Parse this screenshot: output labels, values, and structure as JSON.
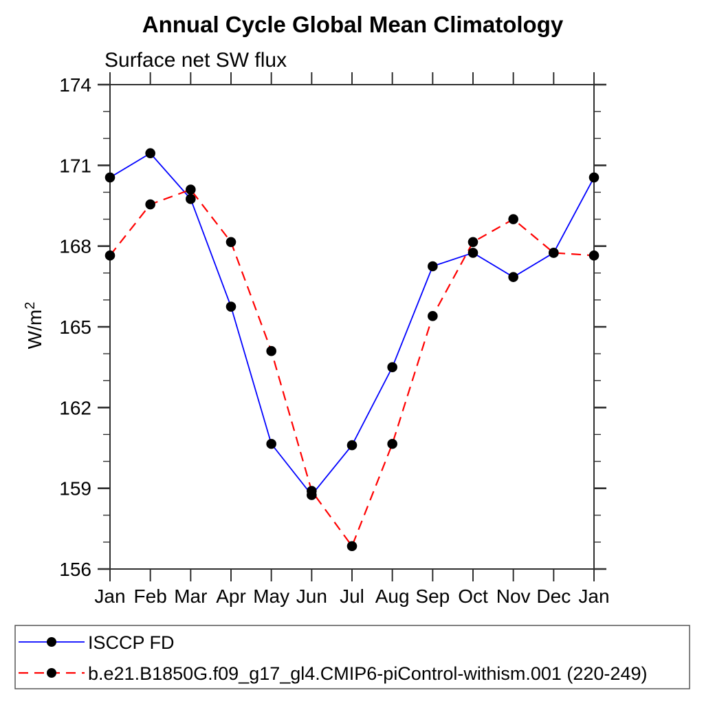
{
  "chart_data": {
    "type": "line",
    "title": "Annual Cycle Global Mean Climatology",
    "subtitle": "Surface net SW flux",
    "ylabel_base": "W/m",
    "ylabel_sup": "2",
    "xlabel": "",
    "categories": [
      "Jan",
      "Feb",
      "Mar",
      "Apr",
      "May",
      "Jun",
      "Jul",
      "Aug",
      "Sep",
      "Oct",
      "Nov",
      "Dec",
      "Jan"
    ],
    "ylim": [
      156,
      174
    ],
    "ytick_values": [
      156,
      159,
      162,
      165,
      168,
      171,
      174
    ],
    "ytick_minor_step": 1,
    "ytick_major_step": 3,
    "grid": false,
    "legend_position": "bottom",
    "colors": {
      "axis": "#2e2e2e",
      "marker": "#000000",
      "series1": "#0000ff",
      "series2": "#ff0000"
    },
    "series": [
      {
        "name": "ISCCP FD",
        "color": "#0000ff",
        "style": "solid",
        "marker": "circle",
        "marker_color": "#000000",
        "values": [
          170.55,
          171.45,
          169.75,
          165.75,
          160.65,
          158.75,
          160.6,
          163.5,
          167.25,
          167.75,
          166.85,
          167.75,
          170.55
        ]
      },
      {
        "name": "b.e21.B1850G.f09_g17_gl4.CMIP6-piControl-withism.001 (220-249)",
        "color": "#ff0000",
        "style": "dashed",
        "marker": "circle",
        "marker_color": "#000000",
        "values": [
          167.65,
          169.55,
          170.1,
          168.15,
          164.1,
          158.9,
          156.85,
          160.65,
          165.4,
          168.15,
          169.0,
          167.75,
          167.65
        ]
      }
    ]
  }
}
